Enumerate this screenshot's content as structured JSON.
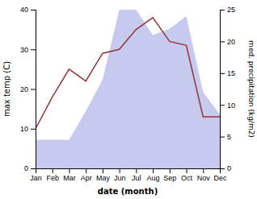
{
  "chart_data": {
    "type": "line",
    "categories": [
      "Jan",
      "Feb",
      "Mar",
      "Apr",
      "May",
      "Jun",
      "Jul",
      "Aug",
      "Sep",
      "Oct",
      "Nov",
      "Dec"
    ],
    "xlabel": "date (month)",
    "ylabel": "max temp (C)",
    "y2label": "med. precipitation (kg/m2)",
    "ylim": [
      0,
      40
    ],
    "yticks": [
      0,
      10,
      20,
      30,
      40
    ],
    "y2lim": [
      0,
      25
    ],
    "y2ticks": [
      0,
      5,
      10,
      15,
      20,
      25
    ],
    "series": [
      {
        "type": "area",
        "axis": "y2",
        "color": "#c5caee",
        "values": [
          4.5,
          4.5,
          4.5,
          9,
          14,
          25,
          25,
          21,
          22,
          24,
          12,
          8.5
        ]
      },
      {
        "type": "line",
        "color": "#993333",
        "values": [
          10,
          18,
          25,
          22,
          29,
          30,
          35,
          38,
          32,
          31,
          13,
          13
        ]
      }
    ]
  }
}
